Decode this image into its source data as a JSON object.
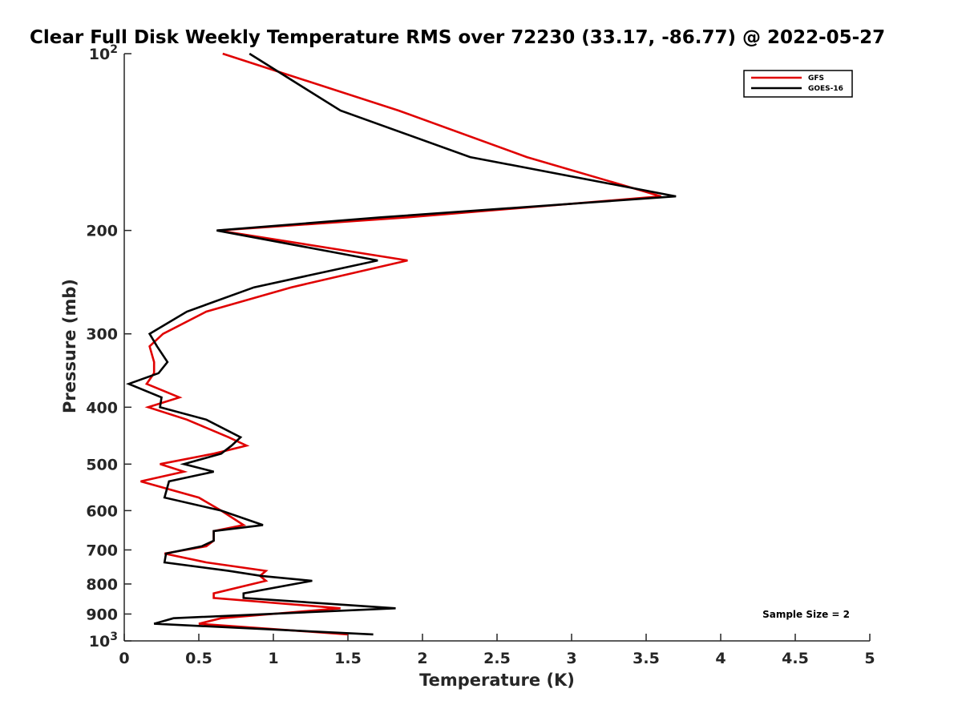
{
  "chart_data": {
    "type": "line",
    "title": "Clear Full Disk Weekly Temperature RMS over 72230 (33.17, -86.77) @ 2022-05-27",
    "xlabel": "Temperature (K)",
    "ylabel": "Pressure (mb)",
    "xlim": [
      0,
      5
    ],
    "ylim": [
      1000,
      100
    ],
    "yscale": "log",
    "y_reversed": true,
    "x_ticks": [
      "0",
      "0.5",
      "1",
      "1.5",
      "2",
      "2.5",
      "3",
      "3.5",
      "4",
      "4.5",
      "5"
    ],
    "y_ticks": [
      {
        "value": 100,
        "base": "10",
        "exp": "2"
      },
      {
        "value": 200,
        "label": "200"
      },
      {
        "value": 300,
        "label": "300"
      },
      {
        "value": 400,
        "label": "400"
      },
      {
        "value": 500,
        "label": "500"
      },
      {
        "value": 600,
        "label": "600"
      },
      {
        "value": 700,
        "label": "700"
      },
      {
        "value": 800,
        "label": "800"
      },
      {
        "value": 900,
        "label": "900"
      },
      {
        "value": 1000,
        "base": "10",
        "exp": "3"
      }
    ],
    "grid": false,
    "legend_position": "top-right",
    "annotation": "Sample Size = 2",
    "series": [
      {
        "name": "GFS",
        "color": "#e00000",
        "points": [
          [
            0.66,
            100
          ],
          [
            1.84,
            125
          ],
          [
            2.7,
            150
          ],
          [
            3.6,
            175
          ],
          [
            1.9,
            190
          ],
          [
            0.63,
            200
          ],
          [
            1.9,
            225
          ],
          [
            1.12,
            250
          ],
          [
            0.55,
            275
          ],
          [
            0.26,
            300
          ],
          [
            0.17,
            315
          ],
          [
            0.2,
            335
          ],
          [
            0.2,
            350
          ],
          [
            0.15,
            365
          ],
          [
            0.37,
            385
          ],
          [
            0.16,
            400
          ],
          [
            0.42,
            420
          ],
          [
            0.7,
            450
          ],
          [
            0.82,
            465
          ],
          [
            0.6,
            480
          ],
          [
            0.24,
            500
          ],
          [
            0.4,
            515
          ],
          [
            0.11,
            535
          ],
          [
            0.5,
            570
          ],
          [
            0.65,
            600
          ],
          [
            0.8,
            635
          ],
          [
            0.6,
            650
          ],
          [
            0.6,
            675
          ],
          [
            0.55,
            690
          ],
          [
            0.27,
            710
          ],
          [
            0.55,
            735
          ],
          [
            0.95,
            760
          ],
          [
            0.91,
            775
          ],
          [
            0.95,
            790
          ],
          [
            0.6,
            830
          ],
          [
            0.6,
            845
          ],
          [
            1.45,
            880
          ],
          [
            0.65,
            915
          ],
          [
            0.5,
            935
          ],
          [
            1.5,
            975
          ]
        ]
      },
      {
        "name": "GOES-16",
        "color": "#000000",
        "points": [
          [
            0.84,
            100
          ],
          [
            1.45,
            125
          ],
          [
            2.32,
            150
          ],
          [
            3.7,
            175
          ],
          [
            1.72,
            190
          ],
          [
            0.62,
            200
          ],
          [
            1.7,
            225
          ],
          [
            0.87,
            250
          ],
          [
            0.42,
            275
          ],
          [
            0.17,
            300
          ],
          [
            0.22,
            315
          ],
          [
            0.29,
            335
          ],
          [
            0.23,
            350
          ],
          [
            0.03,
            365
          ],
          [
            0.25,
            385
          ],
          [
            0.24,
            400
          ],
          [
            0.55,
            420
          ],
          [
            0.78,
            450
          ],
          [
            0.72,
            465
          ],
          [
            0.65,
            480
          ],
          [
            0.4,
            500
          ],
          [
            0.6,
            515
          ],
          [
            0.3,
            535
          ],
          [
            0.27,
            570
          ],
          [
            0.65,
            600
          ],
          [
            0.93,
            635
          ],
          [
            0.6,
            650
          ],
          [
            0.6,
            675
          ],
          [
            0.52,
            690
          ],
          [
            0.28,
            710
          ],
          [
            0.27,
            735
          ],
          [
            0.7,
            760
          ],
          [
            0.92,
            775
          ],
          [
            1.26,
            790
          ],
          [
            0.8,
            830
          ],
          [
            0.8,
            845
          ],
          [
            1.82,
            880
          ],
          [
            0.33,
            915
          ],
          [
            0.2,
            935
          ],
          [
            1.67,
            975
          ]
        ]
      }
    ]
  }
}
